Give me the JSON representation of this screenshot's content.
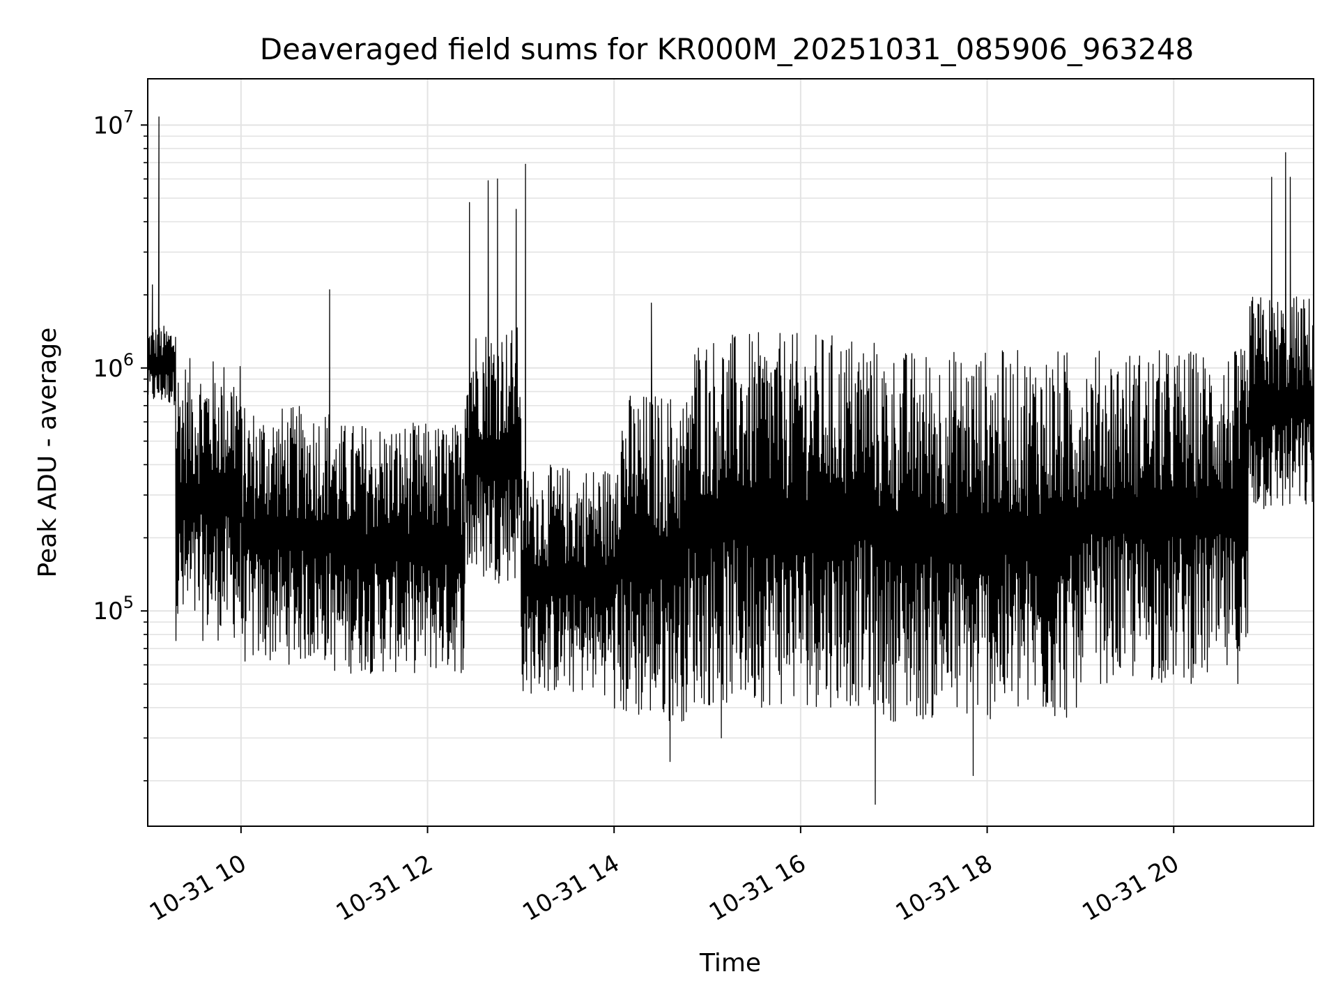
{
  "chart_data": {
    "type": "line",
    "title": "Deaveraged field sums for KR000M_20251031_085906_963248",
    "xlabel": "Time",
    "ylabel": "Peak ADU - average",
    "yscale": "log",
    "xlim_hours": [
      9.0,
      21.5
    ],
    "ylim": [
      13000,
      15500000
    ],
    "grid": true,
    "x_ticks": [
      {
        "hour": 10,
        "label": "10-31 10"
      },
      {
        "hour": 12,
        "label": "10-31 12"
      },
      {
        "hour": 14,
        "label": "10-31 14"
      },
      {
        "hour": 16,
        "label": "10-31 16"
      },
      {
        "hour": 18,
        "label": "10-31 18"
      },
      {
        "hour": 20,
        "label": "10-31 20"
      }
    ],
    "y_ticks": [
      {
        "value": 100000,
        "base": "10",
        "exp": "5"
      },
      {
        "value": 1000000,
        "base": "10",
        "exp": "6"
      },
      {
        "value": 10000000,
        "base": "10",
        "exp": "7"
      }
    ],
    "series": [
      {
        "name": "deaveraged field sums",
        "color": "#000000",
        "envelope_segments": [
          {
            "start": 9.0,
            "end": 9.3,
            "upper": 1500000,
            "lower": 700000
          },
          {
            "start": 9.3,
            "end": 10.0,
            "upper": 1100000,
            "lower": 75000
          },
          {
            "start": 10.0,
            "end": 11.0,
            "upper": 700000,
            "lower": 60000
          },
          {
            "start": 11.0,
            "end": 12.4,
            "upper": 600000,
            "lower": 55000
          },
          {
            "start": 12.4,
            "end": 13.0,
            "upper": 1500000,
            "lower": 130000
          },
          {
            "start": 13.0,
            "end": 14.0,
            "upper": 400000,
            "lower": 45000
          },
          {
            "start": 14.0,
            "end": 14.8,
            "upper": 800000,
            "lower": 35000
          },
          {
            "start": 14.8,
            "end": 16.8,
            "upper": 1400000,
            "lower": 40000
          },
          {
            "start": 16.8,
            "end": 19.0,
            "upper": 1200000,
            "lower": 35000
          },
          {
            "start": 19.0,
            "end": 20.8,
            "upper": 1200000,
            "lower": 50000
          },
          {
            "start": 20.8,
            "end": 21.5,
            "upper": 2000000,
            "lower": 250000
          }
        ],
        "spikes": [
          {
            "hour": 9.12,
            "value": 10800000
          },
          {
            "hour": 9.05,
            "value": 2200000
          },
          {
            "hour": 10.95,
            "value": 2100000
          },
          {
            "hour": 12.45,
            "value": 4800000
          },
          {
            "hour": 12.65,
            "value": 5900000
          },
          {
            "hour": 12.75,
            "value": 6000000
          },
          {
            "hour": 12.95,
            "value": 4500000
          },
          {
            "hour": 13.05,
            "value": 6900000
          },
          {
            "hour": 14.4,
            "value": 1850000
          },
          {
            "hour": 21.05,
            "value": 6100000
          },
          {
            "hour": 21.2,
            "value": 7700000
          },
          {
            "hour": 21.25,
            "value": 6100000
          },
          {
            "hour": 14.6,
            "value": 24000
          },
          {
            "hour": 16.8,
            "value": 16000
          },
          {
            "hour": 17.85,
            "value": 21000
          },
          {
            "hour": 15.15,
            "value": 30000
          }
        ]
      }
    ]
  }
}
